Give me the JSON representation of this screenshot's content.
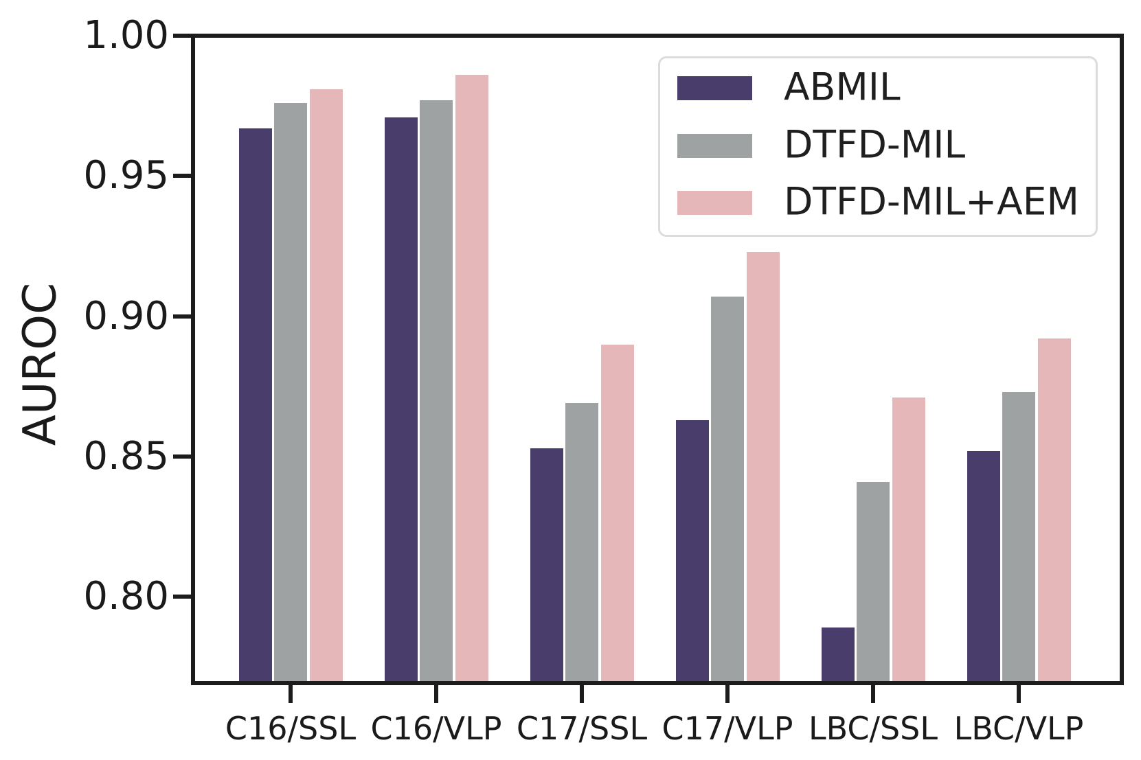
{
  "figure": {
    "background": "#ffffff"
  },
  "chart_data": {
    "type": "bar",
    "title": "",
    "xlabel": "",
    "ylabel": "AUROC",
    "categories": [
      "C16/SSL",
      "C16/VLP",
      "C17/SSL",
      "C17/VLP",
      "LBC/SSL",
      "LBC/VLP"
    ],
    "series": [
      {
        "name": "ABMIL",
        "color": "#483D6B",
        "values": [
          0.967,
          0.971,
          0.853,
          0.863,
          0.789,
          0.852
        ]
      },
      {
        "name": "DTFD-MIL",
        "color": "#9EA2A2",
        "values": [
          0.976,
          0.977,
          0.869,
          0.907,
          0.841,
          0.873
        ]
      },
      {
        "name": "DTFD-MIL+AEM",
        "color": "#E6B7B9",
        "values": [
          0.981,
          0.986,
          0.89,
          0.923,
          0.871,
          0.892
        ]
      }
    ],
    "ylim": [
      0.77,
      1.0
    ],
    "yticks": [
      1.0,
      0.95,
      0.9,
      0.85,
      0.8
    ],
    "ytick_labels": [
      "1.00",
      "0.95",
      "0.90",
      "0.85",
      "0.80"
    ],
    "grid": false,
    "legend_position": "upper right"
  },
  "colors": {
    "spine": "#1c1c1c",
    "tick_text": "#1a1a1a",
    "legend_border": "#dcdcdc"
  }
}
